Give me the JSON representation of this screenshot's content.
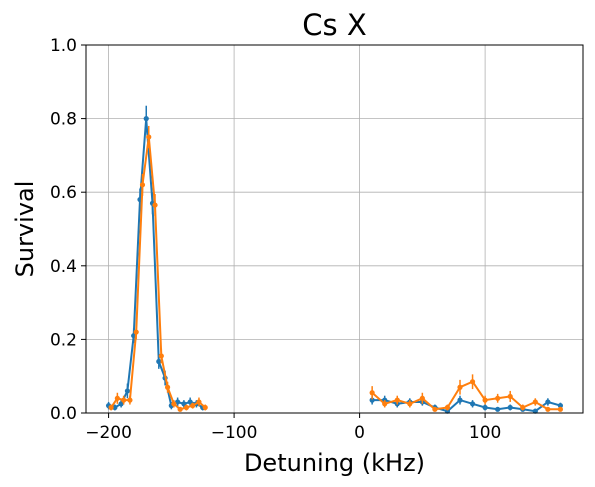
{
  "chart_data": {
    "type": "line",
    "title": "Cs X",
    "xlabel": "Detuning (kHz)",
    "ylabel": "Survival",
    "xlim": [
      -218,
      178
    ],
    "ylim": [
      0,
      1.0
    ],
    "xticks": [
      -200,
      -100,
      0,
      100
    ],
    "yticks": [
      0.0,
      0.2,
      0.4,
      0.6,
      0.8,
      1.0
    ],
    "grid": true,
    "series": [
      {
        "color": "#1f77b4",
        "segments": [
          [
            [
              -200,
              0.02,
              0.01
            ],
            [
              -195,
              0.015,
              0.008
            ],
            [
              -190,
              0.025,
              0.01
            ],
            [
              -185,
              0.06,
              0.02
            ],
            [
              -180,
              0.21,
              0.02
            ],
            [
              -175,
              0.58,
              0.03
            ],
            [
              -170,
              0.8,
              0.035
            ],
            [
              -165,
              0.57,
              0.03
            ],
            [
              -160,
              0.14,
              0.02
            ],
            [
              -155,
              0.095,
              0.02
            ],
            [
              -150,
              0.02,
              0.01
            ],
            [
              -145,
              0.03,
              0.012
            ],
            [
              -140,
              0.025,
              0.01
            ],
            [
              -135,
              0.03,
              0.012
            ],
            [
              -130,
              0.025,
              0.01
            ],
            [
              -125,
              0.015,
              0.008
            ]
          ],
          [
            [
              10,
              0.035,
              0.012
            ],
            [
              20,
              0.035,
              0.012
            ],
            [
              30,
              0.025,
              0.01
            ],
            [
              40,
              0.03,
              0.01
            ],
            [
              50,
              0.03,
              0.01
            ],
            [
              60,
              0.015,
              0.008
            ],
            [
              70,
              0.005,
              0.005
            ],
            [
              80,
              0.035,
              0.012
            ],
            [
              90,
              0.025,
              0.01
            ],
            [
              100,
              0.015,
              0.008
            ],
            [
              110,
              0.01,
              0.006
            ],
            [
              120,
              0.015,
              0.008
            ],
            [
              130,
              0.01,
              0.006
            ],
            [
              140,
              0.005,
              0.005
            ],
            [
              150,
              0.03,
              0.01
            ],
            [
              160,
              0.02,
              0.008
            ]
          ]
        ]
      },
      {
        "color": "#ff7f0e",
        "segments": [
          [
            [
              -198,
              0.015,
              0.008
            ],
            [
              -193,
              0.04,
              0.015
            ],
            [
              -188,
              0.035,
              0.012
            ],
            [
              -183,
              0.035,
              0.012
            ],
            [
              -178,
              0.22,
              0.02
            ],
            [
              -173,
              0.62,
              0.03
            ],
            [
              -168,
              0.75,
              0.03
            ],
            [
              -163,
              0.565,
              0.03
            ],
            [
              -158,
              0.155,
              0.02
            ],
            [
              -153,
              0.07,
              0.015
            ],
            [
              -148,
              0.025,
              0.01
            ],
            [
              -143,
              0.01,
              0.006
            ],
            [
              -138,
              0.015,
              0.008
            ],
            [
              -133,
              0.02,
              0.008
            ],
            [
              -128,
              0.03,
              0.012
            ],
            [
              -123,
              0.015,
              0.008
            ]
          ],
          [
            [
              10,
              0.055,
              0.018
            ],
            [
              20,
              0.025,
              0.01
            ],
            [
              30,
              0.035,
              0.012
            ],
            [
              40,
              0.025,
              0.01
            ],
            [
              50,
              0.04,
              0.015
            ],
            [
              60,
              0.01,
              0.006
            ],
            [
              70,
              0.015,
              0.008
            ],
            [
              80,
              0.07,
              0.02
            ],
            [
              90,
              0.085,
              0.02
            ],
            [
              100,
              0.035,
              0.012
            ],
            [
              110,
              0.04,
              0.012
            ],
            [
              120,
              0.045,
              0.015
            ],
            [
              130,
              0.015,
              0.008
            ],
            [
              140,
              0.03,
              0.01
            ],
            [
              150,
              0.01,
              0.006
            ],
            [
              160,
              0.01,
              0.006
            ]
          ]
        ]
      }
    ]
  }
}
